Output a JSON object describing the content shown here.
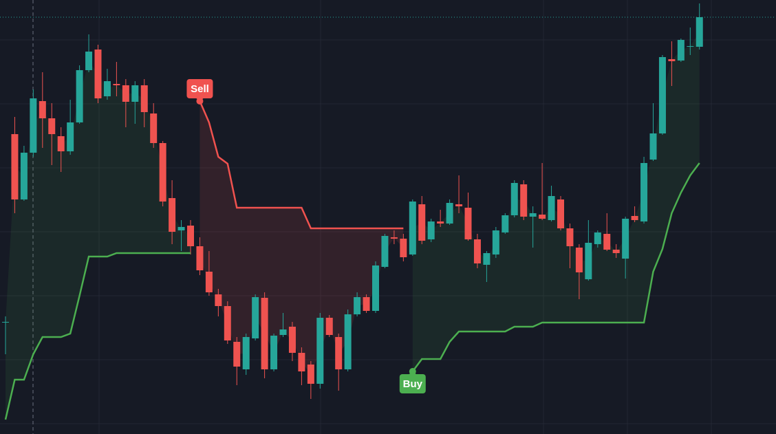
{
  "chart_data": {
    "type": "candlestick",
    "ylim": [
      0,
      631
    ],
    "up_color": "#26a69a",
    "down_color": "#ef5350",
    "open": [
      163,
      436,
      341,
      409,
      484,
      459,
      433,
      411,
      453,
      529,
      559,
      491,
      509,
      507,
      483,
      507,
      466,
      423,
      343,
      296,
      303,
      273,
      236,
      203,
      186,
      134,
      94,
      139,
      198,
      94,
      144,
      156,
      118,
      101,
      73,
      169,
      141,
      94,
      174,
      199,
      179,
      243,
      286,
      284,
      261,
      334,
      283,
      309,
      306,
      334,
      329,
      283,
      246,
      261,
      293,
      318,
      363,
      316,
      319,
      311,
      341,
      299,
      271,
      225,
      276,
      291,
      268,
      255,
      317,
      309,
      399,
      437,
      545,
      543,
      564,
      563
    ],
    "high": [
      171,
      461,
      419,
      501,
      526,
      481,
      446,
      486,
      536,
      581,
      566,
      531,
      541,
      516,
      513,
      516,
      481,
      426,
      369,
      311,
      311,
      286,
      266,
      211,
      193,
      141,
      146,
      203,
      206,
      146,
      176,
      163,
      126,
      106,
      176,
      173,
      146,
      181,
      206,
      203,
      251,
      291,
      296,
      291,
      341,
      346,
      313,
      326,
      341,
      376,
      351,
      291,
      266,
      301,
      321,
      369,
      369,
      331,
      394,
      361,
      346,
      306,
      276,
      311,
      296,
      321,
      276,
      316,
      331,
      403,
      481,
      551,
      571,
      575,
      591,
      626
    ],
    "low": [
      116,
      321,
      339,
      403,
      416,
      391,
      381,
      406,
      451,
      526,
      481,
      486,
      491,
      446,
      451,
      446,
      416,
      331,
      276,
      266,
      261,
      231,
      201,
      171,
      131,
      71,
      86,
      136,
      81,
      91,
      141,
      106,
      71,
      51,
      66,
      141,
      63,
      91,
      171,
      176,
      176,
      241,
      276,
      251,
      259,
      276,
      279,
      301,
      304,
      321,
      281,
      241,
      221,
      256,
      291,
      315,
      311,
      271,
      311,
      309,
      296,
      241,
      196,
      223,
      271,
      266,
      256,
      226,
      308,
      306,
      397,
      435,
      506,
      541,
      551,
      559
    ],
    "close": [
      163,
      341,
      409,
      488,
      459,
      436,
      411,
      453,
      529,
      556,
      488,
      513,
      507,
      483,
      507,
      468,
      423,
      338,
      294,
      301,
      273,
      238,
      206,
      186,
      136,
      98,
      141,
      199,
      94,
      143,
      152,
      118,
      91,
      73,
      169,
      144,
      94,
      174,
      199,
      179,
      245,
      288,
      284,
      257,
      338,
      281,
      309,
      306,
      336,
      331,
      283,
      248,
      263,
      296,
      318,
      365,
      316,
      321,
      313,
      346,
      299,
      273,
      235,
      278,
      293,
      268,
      263,
      313,
      311,
      394,
      437,
      548,
      542,
      573,
      564,
      606
    ],
    "supertrend_up": {
      "color": "#4caf50",
      "values": [
        21,
        79,
        79,
        116,
        141,
        141,
        141,
        146,
        201,
        258,
        258,
        258,
        263,
        263,
        263,
        263,
        263,
        263,
        263,
        263,
        263,
        null,
        null,
        null,
        null,
        null,
        null,
        null,
        null,
        null,
        null,
        null,
        null,
        null,
        null,
        null,
        null,
        null,
        null,
        null,
        null,
        null,
        null,
        null,
        91,
        109,
        109,
        109,
        134,
        149,
        149,
        149,
        149,
        149,
        149,
        156,
        156,
        156,
        162,
        162,
        162,
        162,
        162,
        162,
        162,
        162,
        162,
        162,
        162,
        162,
        236,
        269,
        321,
        351,
        376,
        394
      ]
    },
    "supertrend_down": {
      "color": "#f0524f",
      "values": [
        null,
        null,
        null,
        null,
        null,
        null,
        null,
        null,
        null,
        null,
        null,
        null,
        null,
        null,
        null,
        null,
        null,
        null,
        null,
        null,
        null,
        484,
        453,
        403,
        393,
        329,
        329,
        329,
        329,
        329,
        329,
        329,
        329,
        299,
        299,
        299,
        299,
        299,
        299,
        299,
        299,
        299,
        299,
        299,
        null,
        null,
        null,
        null,
        null,
        null,
        null,
        null,
        null,
        null,
        null,
        null,
        null,
        null,
        null,
        null,
        null,
        null,
        null,
        null,
        null,
        null,
        null,
        null,
        null,
        null,
        null,
        null,
        null,
        null,
        null,
        null
      ]
    },
    "sell_label": "Sell",
    "buy_label": "Buy"
  }
}
